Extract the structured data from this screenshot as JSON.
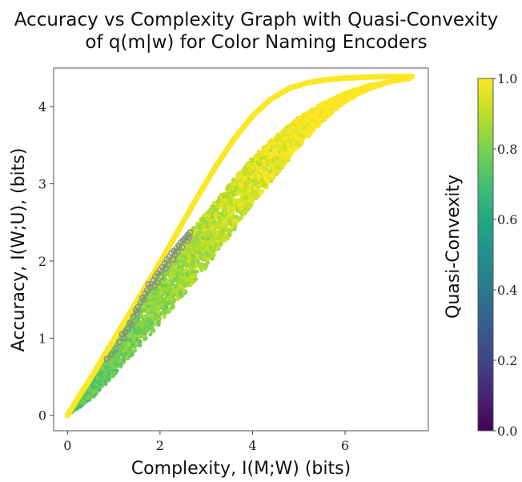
{
  "chart_data": {
    "type": "scatter",
    "title_line1": "Accuracy vs Complexity Graph with Quasi-Convexity",
    "title_line2": "of q(m|w) for Color Naming Encoders",
    "xlabel": "Complexity, I(M;W) (bits)",
    "ylabel": "Accuracy, I(W;U), (bits)",
    "xlim": [
      -0.3,
      7.8
    ],
    "ylim": [
      -0.2,
      4.5
    ],
    "xticks": [
      0,
      2,
      4,
      6
    ],
    "yticks": [
      0,
      1,
      2,
      3,
      4
    ],
    "grid": false,
    "colorbar": {
      "label": "Quasi-Convexity",
      "range": [
        0.0,
        1.0
      ],
      "ticks": [
        "0.0",
        "0.2",
        "0.4",
        "0.6",
        "0.8",
        "1.0"
      ],
      "colormap": "viridis"
    },
    "frontier": {
      "description": "",
      "x": [
        0.0,
        0.2,
        0.5,
        0.8,
        1.0,
        1.3,
        1.6,
        2.0,
        2.4,
        2.8,
        3.2,
        3.6,
        4.0,
        4.4,
        4.8,
        5.2,
        5.6,
        6.0,
        6.4,
        6.8,
        7.2,
        7.45
      ],
      "y": [
        0.0,
        0.2,
        0.48,
        0.78,
        0.98,
        1.28,
        1.58,
        1.98,
        2.4,
        2.82,
        3.22,
        3.58,
        3.88,
        4.1,
        4.24,
        4.31,
        4.35,
        4.37,
        4.38,
        4.39,
        4.39,
        4.39
      ]
    },
    "natural_languages": {
      "marker": "hollow-circle",
      "edge_color": "#8a8a8a",
      "points": [
        [
          0.85,
          0.73
        ],
        [
          0.95,
          0.79
        ],
        [
          1.05,
          0.86
        ],
        [
          1.12,
          0.95
        ],
        [
          1.18,
          1.05
        ],
        [
          1.25,
          1.08
        ],
        [
          1.3,
          1.12
        ],
        [
          1.35,
          1.2
        ],
        [
          1.42,
          1.28
        ],
        [
          1.48,
          1.36
        ],
        [
          1.52,
          1.4
        ],
        [
          1.58,
          1.46
        ],
        [
          1.62,
          1.52
        ],
        [
          1.68,
          1.58
        ],
        [
          1.72,
          1.62
        ],
        [
          1.78,
          1.66
        ],
        [
          1.82,
          1.7
        ],
        [
          1.86,
          1.75
        ],
        [
          1.9,
          1.8
        ],
        [
          1.95,
          1.84
        ],
        [
          2.0,
          1.88
        ],
        [
          2.05,
          1.92
        ],
        [
          2.1,
          1.97
        ],
        [
          2.15,
          2.02
        ],
        [
          2.2,
          2.05
        ],
        [
          2.25,
          2.1
        ],
        [
          2.3,
          2.13
        ],
        [
          2.35,
          2.16
        ],
        [
          2.4,
          2.2
        ],
        [
          2.45,
          2.24
        ],
        [
          2.5,
          2.27
        ],
        [
          2.55,
          2.3
        ],
        [
          2.6,
          2.34
        ],
        [
          2.65,
          2.37
        ],
        [
          1.5,
          1.32
        ],
        [
          1.65,
          1.5
        ],
        [
          1.75,
          1.7
        ],
        [
          1.88,
          1.68
        ],
        [
          2.02,
          1.8
        ],
        [
          2.12,
          1.9
        ],
        [
          2.28,
          2.02
        ],
        [
          2.38,
          2.12
        ],
        [
          2.48,
          2.18
        ],
        [
          2.58,
          2.26
        ],
        [
          1.95,
          1.72
        ],
        [
          1.4,
          1.18
        ],
        [
          1.22,
          1.0
        ],
        [
          2.18,
          1.95
        ],
        [
          2.32,
          2.08
        ],
        [
          2.62,
          2.3
        ]
      ]
    },
    "cloud": {
      "description": "",
      "n_points": 5200,
      "upper_y": {
        "x": [
          0,
          0.5,
          1,
          1.5,
          2,
          2.5,
          3,
          3.5,
          4,
          4.5,
          5,
          5.5,
          6,
          6.5,
          7,
          7.4
        ],
        "y": [
          0,
          0.46,
          0.94,
          1.42,
          1.88,
          2.28,
          2.62,
          3.0,
          3.34,
          3.62,
          3.86,
          4.04,
          4.18,
          4.28,
          4.33,
          4.36
        ]
      },
      "lower_y": {
        "x": [
          0,
          0.5,
          1,
          1.5,
          2,
          2.5,
          3,
          3.5,
          4,
          4.5,
          5,
          5.5,
          6,
          6.5,
          7,
          7.4
        ],
        "y": [
          0,
          0.2,
          0.5,
          0.85,
          1.18,
          1.55,
          1.92,
          2.32,
          2.72,
          3.1,
          3.48,
          3.8,
          4.06,
          4.22,
          4.32,
          4.36
        ]
      }
    }
  }
}
